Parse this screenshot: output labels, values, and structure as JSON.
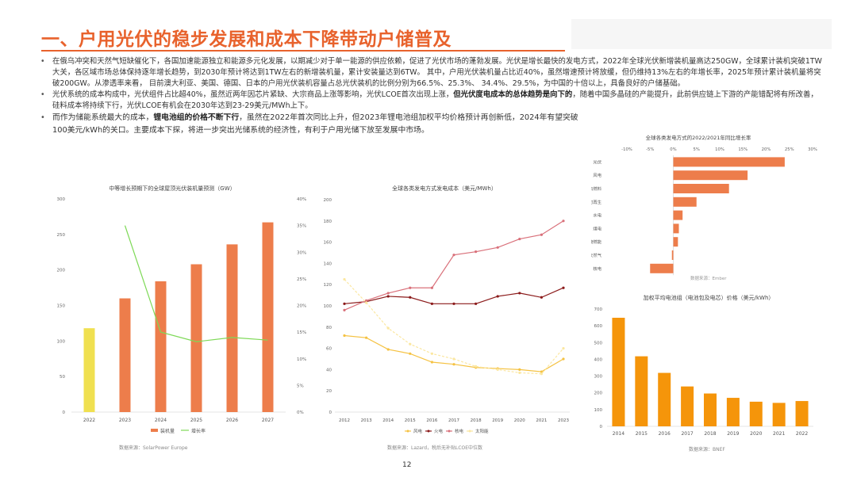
{
  "header": {
    "title": "一、户用光伏的稳步发展和成本下降带动户储普及"
  },
  "bullets": {
    "b1": "在俄乌冲突和天然气短缺催化下，各国加速能源独立和能源多元化发展，以期减少对于单一能源的供应依赖，促进了光伏市场的蓬勃发展。光伏是增长最快的发电方式，2022年全球光伏新增装机量高达250GW，全球累计装机突破1TW大关，各区域市场总体保持逐年增长趋势，到2030年预计将达到1TW左右的新增装机量，累计安装量达到6TW。 其中，户用光伏装机量占比近40%，虽然增速预计将放缓，但仍维持13%左右的年增长率，2025年预计累计装机量将突破200GW。从渗透率来看， 目前澳大利亚、美国、德国、日本的户用光伏装机容量占总光伏装机的比例分别为66.5%、25.3%、 34.4%、29.5%，为中国的十倍以上，具备良好的户储基础。",
    "b2_pre": "光伏系统的成本构成中，光伏组件占比超40%，虽然近两年因芯片紧缺、大宗商品上涨等影响，光伏LCOE首次出现上涨，",
    "b2_bold": "但光伏度电成本的总体趋势是向下的",
    "b2_post": "，随着中国多晶硅的产能提升，此前供应链上下游的产能错配将有所改善，硅料成本将持续下行，光伏LCOE有机会在2030年达到23-29美元/MWh上下。",
    "b3_pre": "而作为储能系统最大的成本，",
    "b3_bold": "锂电池组的价格不断下行",
    "b3_post": "，虽然在2022年首次同比上升，但2023年锂电池组加权平均价格预计再创新低，2024年有望突破100美元/kWh的关口。主要成本下探，将进一步突出光储系统的经济性，有利于户用光储下放至发展中市场。"
  },
  "colors": {
    "orange": "#e8622c",
    "yellow": "#f0e050",
    "green": "#7ed957",
    "bar_orange": "#ed7d4b",
    "bright_orange": "#f5950a",
    "dark_red": "#8b1a1a",
    "pink_red": "#d9707a",
    "yellow_gold": "#f5c242",
    "pale_yellow": "#fbe7a1"
  },
  "chart_data": [
    {
      "id": "pv",
      "type": "bar",
      "title": "中等增长预期下的全球屋顶光伏装机量预测（GW）",
      "categories": [
        "2022",
        "2023",
        "2024",
        "2025",
        "2026",
        "2027"
      ],
      "series": [
        {
          "name": "装机量",
          "values": [
            118,
            160,
            184,
            208,
            236,
            267
          ]
        },
        {
          "name": "增长率",
          "values": [
            null,
            35,
            15,
            13.2,
            14,
            13.5
          ]
        }
      ],
      "ylim": [
        0,
        300
      ],
      "y2lim": [
        0,
        40
      ],
      "yticks": [
        "0",
        "50",
        "100",
        "150",
        "200",
        "250",
        "300"
      ],
      "y2ticks": [
        "0%",
        "5%",
        "10%",
        "15%",
        "20%",
        "25%",
        "30%",
        "35%",
        "40%"
      ],
      "source": "数据来源：SolarPower Europe"
    },
    {
      "id": "lcoe",
      "type": "line",
      "title": "全球各类发电方式发电成本（美元/MWh）",
      "x": [
        "2012",
        "2013",
        "2014",
        "2015",
        "2016",
        "2017",
        "2018",
        "2019",
        "2020",
        "2021",
        "2023"
      ],
      "series": [
        {
          "name": "风电",
          "values": [
            72,
            70,
            59,
            55,
            47,
            45,
            42,
            41,
            40,
            38,
            50
          ]
        },
        {
          "name": "火电",
          "values": [
            102,
            104,
            109,
            108,
            102,
            102,
            102,
            109,
            112,
            108,
            117
          ]
        },
        {
          "name": "核电",
          "values": [
            96,
            105,
            112,
            117,
            117,
            148,
            151,
            155,
            163,
            167,
            180
          ]
        },
        {
          "name": "太阳能",
          "values": [
            125,
            103,
            79,
            64,
            55,
            50,
            43,
            40,
            37,
            36,
            60
          ]
        }
      ],
      "ylim": [
        0,
        200
      ],
      "yticks": [
        "0",
        "20",
        "40",
        "60",
        "80",
        "100",
        "120",
        "140",
        "160",
        "180",
        "200"
      ],
      "source": "数据来源：Lazard，税后无补贴LCOE中位数"
    },
    {
      "id": "growth",
      "type": "bar",
      "orientation": "horizontal",
      "title": "全球各类发电方式的2022/2021年同比增长率",
      "categories": [
        "光伏",
        "风电",
        "其它化石燃料",
        "其它可再生",
        "水电",
        "煤电",
        "生物燃能",
        "天然气",
        "核电"
      ],
      "values": [
        24,
        16,
        12,
        5,
        2,
        1.2,
        1,
        -0.3,
        -5
      ],
      "xlim": [
        -10,
        30
      ],
      "xticks": [
        "-10%",
        "-5%",
        "0%",
        "5%",
        "10%",
        "15%",
        "20%",
        "25%",
        "30%"
      ],
      "source": "数据来源：Ember"
    },
    {
      "id": "battery",
      "type": "bar",
      "title": "加权平均电池组（电池包及电芯）价格（美元/kWh）",
      "categories": [
        "2014",
        "2015",
        "2016",
        "2017",
        "2018",
        "2019",
        "2020",
        "2021",
        "2022"
      ],
      "values": [
        648,
        418,
        319,
        238,
        196,
        170,
        147,
        140,
        151
      ],
      "ylim": [
        0,
        700
      ],
      "yticks": [
        "0",
        "100",
        "200",
        "300",
        "400",
        "500",
        "600",
        "700"
      ],
      "source": "数据来源：BNEF"
    }
  ],
  "footer": {
    "page": "12"
  }
}
